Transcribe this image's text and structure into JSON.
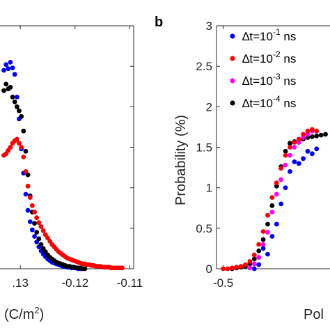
{
  "chart_data": [
    {
      "panel": "a",
      "type": "scatter",
      "panel_label": "",
      "xlabel": "(C/m",
      "xlabel_sup": "2",
      "xlabel_tail": ")",
      "xlim": [
        -0.1337,
        -0.1093
      ],
      "ylim": [
        0,
        3
      ],
      "xticks": [
        -0.13,
        -0.12,
        -0.11
      ],
      "xtick_labels": [
        ".13",
        "-0.12",
        "-0.11"
      ],
      "series": [
        {
          "color": "#0000ff",
          "x": [
            -0.133,
            -0.1326,
            -0.1322,
            -0.1318,
            -0.1314,
            -0.131,
            -0.1306,
            -0.1302,
            -0.1298,
            -0.1294,
            -0.129,
            -0.1286,
            -0.1282,
            -0.1278,
            -0.1274,
            -0.127,
            -0.1266,
            -0.1262,
            -0.1258,
            -0.1254,
            -0.125,
            -0.1246,
            -0.1242,
            -0.1238,
            -0.1234,
            -0.123,
            -0.1226,
            -0.1222,
            -0.1218,
            -0.1214,
            -0.121,
            -0.1206,
            -0.1202,
            -0.1198,
            -0.1194,
            -0.119
          ],
          "y": [
            2.45,
            2.52,
            2.47,
            2.55,
            2.48,
            2.4,
            2.12,
            1.85,
            1.48,
            1.18,
            0.92,
            0.72,
            0.58,
            0.48,
            0.4,
            0.33,
            0.27,
            0.22,
            0.18,
            0.15,
            0.12,
            0.1,
            0.08,
            0.07,
            0.06,
            0.05,
            0.04,
            0.03,
            0.03,
            0.02,
            0.02,
            0.01,
            0.01,
            0.01,
            0.0,
            0.0
          ]
        },
        {
          "color": "#000000",
          "x": [
            -0.133,
            -0.1326,
            -0.1322,
            -0.1318,
            -0.1314,
            -0.131,
            -0.1306,
            -0.1302,
            -0.1298,
            -0.1294,
            -0.129,
            -0.1286,
            -0.1282,
            -0.1278,
            -0.1274,
            -0.127,
            -0.1266,
            -0.1262,
            -0.1258,
            -0.1254,
            -0.125,
            -0.1246,
            -0.1242,
            -0.1238,
            -0.1234,
            -0.123,
            -0.1226,
            -0.1222,
            -0.1218,
            -0.1214,
            -0.121,
            -0.1206,
            -0.1202,
            -0.1198,
            -0.1194,
            -0.119,
            -0.1186,
            -0.1182
          ],
          "y": [
            2.2,
            2.28,
            2.22,
            2.24,
            2.12,
            2.06,
            2.0,
            1.95,
            1.88,
            1.7,
            1.45,
            1.16,
            0.9,
            0.7,
            0.56,
            0.45,
            0.37,
            0.3,
            0.25,
            0.21,
            0.17,
            0.14,
            0.12,
            0.1,
            0.08,
            0.07,
            0.06,
            0.05,
            0.04,
            0.03,
            0.03,
            0.02,
            0.02,
            0.01,
            0.01,
            0.01,
            0.0,
            0.0
          ]
        },
        {
          "color": "#ff0000",
          "x": [
            -0.133,
            -0.1326,
            -0.1322,
            -0.1318,
            -0.1314,
            -0.131,
            -0.1306,
            -0.1302,
            -0.1298,
            -0.1294,
            -0.129,
            -0.1286,
            -0.1282,
            -0.1278,
            -0.1274,
            -0.127,
            -0.1266,
            -0.1262,
            -0.1258,
            -0.1254,
            -0.125,
            -0.1246,
            -0.1242,
            -0.1238,
            -0.1234,
            -0.123,
            -0.1226,
            -0.1222,
            -0.1218,
            -0.1214,
            -0.121,
            -0.1206,
            -0.1202,
            -0.1198,
            -0.1194,
            -0.119,
            -0.1186,
            -0.1182,
            -0.1178,
            -0.1174,
            -0.117,
            -0.1166,
            -0.1162,
            -0.1158,
            -0.1154,
            -0.115,
            -0.1146,
            -0.1142,
            -0.1138,
            -0.1134,
            -0.113,
            -0.1126,
            -0.1122,
            -0.1118,
            -0.1114
          ],
          "y": [
            1.4,
            1.42,
            1.46,
            1.5,
            1.55,
            1.58,
            1.6,
            1.55,
            1.5,
            1.38,
            1.2,
            1.02,
            0.88,
            0.78,
            0.7,
            0.63,
            0.57,
            0.52,
            0.47,
            0.42,
            0.38,
            0.34,
            0.3,
            0.27,
            0.24,
            0.21,
            0.19,
            0.17,
            0.15,
            0.13,
            0.12,
            0.11,
            0.1,
            0.09,
            0.08,
            0.07,
            0.06,
            0.06,
            0.05,
            0.05,
            0.04,
            0.04,
            0.03,
            0.03,
            0.03,
            0.02,
            0.02,
            0.02,
            0.02,
            0.01,
            0.01,
            0.01,
            0.01,
            0.01,
            0.01
          ]
        }
      ]
    },
    {
      "panel": "b",
      "type": "scatter",
      "panel_label": "b",
      "ylabel": "Probability (%)",
      "xlabel": "Pol",
      "xlim": [
        -0.53,
        -0.02
      ],
      "ylim": [
        0,
        3
      ],
      "yticks": [
        0,
        0.5,
        1,
        1.5,
        2,
        2.5,
        3
      ],
      "ytick_labels": [
        "0",
        "0.5",
        "1",
        "1.5",
        "2",
        "2.5",
        "3"
      ],
      "xticks": [
        -0.5
      ],
      "xtick_labels": [
        "-0.5"
      ],
      "legend": {
        "position": "top-right",
        "entries": [
          {
            "color": "#0000ff",
            "prefix": "∆t=10",
            "exp": "-1",
            "suffix": " ns"
          },
          {
            "color": "#ff0000",
            "prefix": "∆t=10",
            "exp": "-2",
            "suffix": " ns"
          },
          {
            "color": "#ff00ff",
            "prefix": "∆t=10",
            "exp": "-3",
            "suffix": " ns"
          },
          {
            "color": "#000000",
            "prefix": "∆t=10",
            "exp": "-4",
            "suffix": " ns"
          }
        ]
      },
      "series": [
        {
          "color": "#000000",
          "x": [
            -0.46,
            -0.44,
            -0.42,
            -0.4,
            -0.38,
            -0.36,
            -0.34,
            -0.32,
            -0.3,
            -0.28,
            -0.26,
            -0.24,
            -0.22,
            -0.2,
            -0.18,
            -0.16,
            -0.14,
            -0.12,
            -0.1,
            -0.08,
            -0.06,
            -0.04
          ],
          "y": [
            0.0,
            0.01,
            0.02,
            0.03,
            0.06,
            0.12,
            0.22,
            0.36,
            0.55,
            0.78,
            1.02,
            1.26,
            1.45,
            1.55,
            1.57,
            1.56,
            1.6,
            1.62,
            1.63,
            1.64,
            1.65,
            1.66
          ]
        },
        {
          "color": "#ff00ff",
          "x": [
            -0.38,
            -0.36,
            -0.34,
            -0.32,
            -0.3,
            -0.28,
            -0.26,
            -0.24,
            -0.22,
            -0.2,
            -0.18,
            -0.16,
            -0.14,
            -0.12,
            -0.1
          ],
          "y": [
            0.01,
            0.06,
            0.14,
            0.3,
            0.45,
            0.7,
            0.92,
            1.1,
            1.28,
            1.4,
            1.5,
            1.56,
            1.62,
            1.66,
            1.7
          ]
        },
        {
          "color": "#0000ff",
          "x": [
            -0.36,
            -0.34,
            -0.32,
            -0.3,
            -0.28,
            -0.26,
            -0.24,
            -0.22,
            -0.2,
            -0.18,
            -0.16,
            -0.14,
            -0.12,
            -0.1,
            -0.08
          ],
          "y": [
            0.0,
            0.05,
            0.25,
            0.18,
            0.4,
            0.55,
            0.8,
            1.0,
            1.2,
            1.32,
            1.3,
            1.36,
            1.45,
            1.42,
            1.48
          ]
        },
        {
          "color": "#ff0000",
          "x": [
            -0.5,
            -0.48,
            -0.46,
            -0.44,
            -0.42,
            -0.4,
            -0.38,
            -0.36,
            -0.34,
            -0.32,
            -0.3,
            -0.28,
            -0.26,
            -0.24,
            -0.22,
            -0.2,
            -0.18,
            -0.16,
            -0.14,
            -0.12,
            -0.1,
            -0.08
          ],
          "y": [
            0.0,
            0.0,
            0.01,
            0.02,
            0.03,
            0.05,
            0.09,
            0.17,
            0.3,
            0.46,
            0.66,
            0.88,
            1.06,
            1.24,
            1.4,
            1.5,
            1.56,
            1.6,
            1.66,
            1.7,
            1.72,
            1.7
          ]
        }
      ]
    }
  ]
}
